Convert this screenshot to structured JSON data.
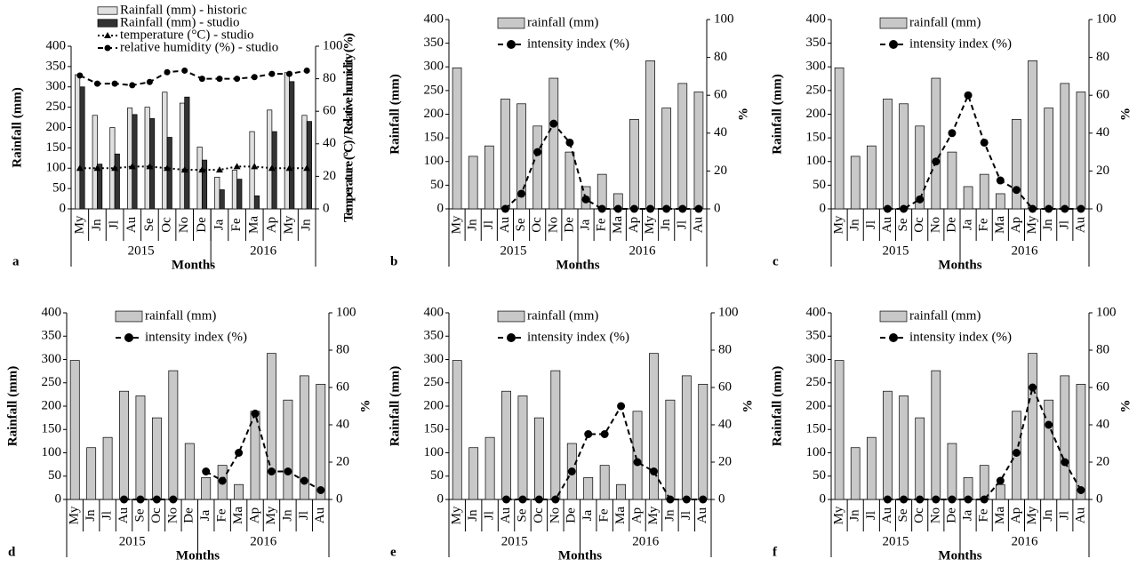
{
  "chart_data": [
    {
      "type": "bar_line",
      "panel_label": "a",
      "xlabel": "Months",
      "ylabel": "Rainfall (mm)",
      "y2label": "Temperature (°C) / Relative humidity (%)",
      "categories": [
        "My",
        "Jn",
        "Jl",
        "Au",
        "Se",
        "Oc",
        "No",
        "De",
        "Ja",
        "Fe",
        "Ma",
        "Ap",
        "My",
        "Jn"
      ],
      "groups": [
        {
          "name": "2015",
          "count": 8
        },
        {
          "name": "2016",
          "count": 6
        }
      ],
      "series": [
        {
          "name": "Rainfall (mm) - historic",
          "type": "bar",
          "color": "#e0e0e0",
          "values": [
            330,
            230,
            200,
            248,
            250,
            287,
            260,
            152,
            78,
            95,
            190,
            243,
            335,
            230
          ]
        },
        {
          "name": "Rainfall (mm) - studio",
          "type": "bar",
          "color": "#333333",
          "values": [
            300,
            110,
            135,
            232,
            222,
            176,
            275,
            120,
            47,
            73,
            32,
            190,
            313,
            215
          ]
        },
        {
          "name": "temperature (°C) - studio",
          "type": "line",
          "axis": "y2",
          "color": "#000000",
          "marker": "triangle",
          "line_style": "dotted",
          "values": [
            25,
            25,
            25,
            26,
            26,
            25,
            24,
            24,
            24,
            26,
            26,
            25,
            25,
            25
          ]
        },
        {
          "name": "relative humidity (%) - studio",
          "type": "line",
          "axis": "y2",
          "color": "#000000",
          "marker": "circle",
          "line_style": "dashed",
          "values": [
            82,
            77,
            77,
            76,
            78,
            84,
            85,
            80,
            80,
            80,
            81,
            83,
            83,
            85
          ]
        }
      ],
      "ylim": [
        0,
        400
      ],
      "yticks": [
        0,
        50,
        100,
        150,
        200,
        250,
        300,
        350,
        400
      ],
      "y2lim": [
        0,
        100
      ],
      "y2ticks": [
        0,
        20,
        40,
        60,
        80,
        100
      ],
      "legend": "top-left"
    },
    {
      "type": "bar_line",
      "panel_label": "b",
      "xlabel": "Months",
      "ylabel": "Rainfall (mm)",
      "y2label": "%",
      "categories": [
        "My",
        "Jn",
        "Jl",
        "Au",
        "Se",
        "Oc",
        "No",
        "De",
        "Ja",
        "Fe",
        "Ma",
        "Ap",
        "My",
        "Jn",
        "Jl",
        "Au"
      ],
      "groups": [
        {
          "name": "2015",
          "count": 8
        },
        {
          "name": "2016",
          "count": 8
        }
      ],
      "series": [
        {
          "name": "rainfall (mm)",
          "type": "bar",
          "color": "#c8c8c8",
          "values": [
            298,
            111,
            133,
            232,
            222,
            175,
            276,
            120,
            47,
            73,
            32,
            189,
            313,
            213,
            265,
            247
          ]
        },
        {
          "name": "intensity index (%)",
          "type": "line",
          "axis": "y2",
          "color": "#000000",
          "marker": "circle",
          "line_style": "dashed",
          "values": [
            null,
            null,
            null,
            0,
            8,
            30,
            45,
            35,
            5,
            0,
            0,
            0,
            0,
            0,
            0,
            0
          ]
        }
      ],
      "ylim": [
        0,
        400
      ],
      "yticks": [
        0,
        50,
        100,
        150,
        200,
        250,
        300,
        350,
        400
      ],
      "y2lim": [
        0,
        100
      ],
      "y2ticks": [
        0,
        20,
        40,
        60,
        80,
        100
      ],
      "legend": "top"
    },
    {
      "type": "bar_line",
      "panel_label": "c",
      "xlabel": "Months",
      "ylabel": "Rainfall (mm)",
      "y2label": "%",
      "categories": [
        "My",
        "Jn",
        "Jl",
        "Au",
        "Se",
        "Oc",
        "No",
        "De",
        "Ja",
        "Fe",
        "Ma",
        "Ap",
        "My",
        "Jn",
        "Jl",
        "Au"
      ],
      "groups": [
        {
          "name": "2015",
          "count": 8
        },
        {
          "name": "2016",
          "count": 8
        }
      ],
      "series": [
        {
          "name": "rainfall (mm)",
          "type": "bar",
          "color": "#c8c8c8",
          "values": [
            298,
            111,
            133,
            232,
            222,
            175,
            276,
            120,
            47,
            73,
            32,
            189,
            313,
            213,
            265,
            247
          ]
        },
        {
          "name": "intensity index (%)",
          "type": "line",
          "axis": "y2",
          "color": "#000000",
          "marker": "circle",
          "line_style": "dashed",
          "values": [
            null,
            null,
            null,
            0,
            0,
            5,
            25,
            40,
            60,
            35,
            15,
            10,
            0,
            0,
            0,
            0
          ]
        }
      ],
      "ylim": [
        0,
        400
      ],
      "yticks": [
        0,
        50,
        100,
        150,
        200,
        250,
        300,
        350,
        400
      ],
      "y2lim": [
        0,
        100
      ],
      "y2ticks": [
        0,
        20,
        40,
        60,
        80,
        100
      ],
      "legend": "top"
    },
    {
      "type": "bar_line",
      "panel_label": "d",
      "xlabel": "Months",
      "ylabel": "Rainfall (mm)",
      "y2label": "%",
      "categories": [
        "My",
        "Jn",
        "Jl",
        "Au",
        "Se",
        "Oc",
        "No",
        "De",
        "Ja",
        "Fe",
        "Ma",
        "Ap",
        "My",
        "Jn",
        "Jl",
        "Au"
      ],
      "groups": [
        {
          "name": "2015",
          "count": 8
        },
        {
          "name": "2016",
          "count": 8
        }
      ],
      "series": [
        {
          "name": "rainfall (mm)",
          "type": "bar",
          "color": "#c8c8c8",
          "values": [
            298,
            111,
            133,
            232,
            222,
            175,
            276,
            120,
            47,
            73,
            32,
            189,
            313,
            213,
            265,
            247
          ]
        },
        {
          "name": "intensity index (%)",
          "type": "line",
          "axis": "y2",
          "color": "#000000",
          "marker": "circle",
          "line_style": "dashed",
          "values": [
            null,
            null,
            null,
            0,
            0,
            0,
            0,
            null,
            15,
            10,
            25,
            46,
            15,
            15,
            10,
            5
          ]
        }
      ],
      "ylim": [
        0,
        400
      ],
      "yticks": [
        0,
        50,
        100,
        150,
        200,
        250,
        300,
        350,
        400
      ],
      "y2lim": [
        0,
        100
      ],
      "y2ticks": [
        0,
        20,
        40,
        60,
        80,
        100
      ],
      "legend": "top"
    },
    {
      "type": "bar_line",
      "panel_label": "e",
      "xlabel": "Months",
      "ylabel": "Rainfall (mm)",
      "y2label": "%",
      "categories": [
        "My",
        "Jn",
        "Jl",
        "Au",
        "Se",
        "Oc",
        "No",
        "De",
        "Ja",
        "Fe",
        "Ma",
        "Ap",
        "My",
        "Jn",
        "Jl",
        "Au"
      ],
      "groups": [
        {
          "name": "2015",
          "count": 8
        },
        {
          "name": "2016",
          "count": 8
        }
      ],
      "series": [
        {
          "name": "rainfall (mm)",
          "type": "bar",
          "color": "#c8c8c8",
          "values": [
            298,
            111,
            133,
            232,
            222,
            175,
            276,
            120,
            47,
            73,
            32,
            189,
            313,
            213,
            265,
            247
          ]
        },
        {
          "name": "intensity index (%)",
          "type": "line",
          "axis": "y2",
          "color": "#000000",
          "marker": "circle",
          "line_style": "dashed",
          "values": [
            null,
            null,
            null,
            0,
            0,
            0,
            0,
            15,
            35,
            35,
            50,
            20,
            15,
            0,
            0,
            0
          ]
        }
      ],
      "ylim": [
        0,
        400
      ],
      "yticks": [
        0,
        50,
        100,
        150,
        200,
        250,
        300,
        350,
        400
      ],
      "y2lim": [
        0,
        100
      ],
      "y2ticks": [
        0,
        20,
        40,
        60,
        80,
        100
      ],
      "legend": "top"
    },
    {
      "type": "bar_line",
      "panel_label": "f",
      "xlabel": "Months",
      "ylabel": "Rainfall (mm)",
      "y2label": "%",
      "categories": [
        "My",
        "Jn",
        "Jl",
        "Au",
        "Se",
        "Oc",
        "No",
        "De",
        "Ja",
        "Fe",
        "Ma",
        "Ap",
        "My",
        "Jn",
        "Jl",
        "Au"
      ],
      "groups": [
        {
          "name": "2015",
          "count": 8
        },
        {
          "name": "2016",
          "count": 8
        }
      ],
      "series": [
        {
          "name": "rainfall (mm)",
          "type": "bar",
          "color": "#c8c8c8",
          "values": [
            298,
            111,
            133,
            232,
            222,
            175,
            276,
            120,
            47,
            73,
            32,
            189,
            313,
            213,
            265,
            247
          ]
        },
        {
          "name": "intensity index (%)",
          "type": "line",
          "axis": "y2",
          "color": "#000000",
          "marker": "circle",
          "line_style": "dashed",
          "values": [
            null,
            null,
            null,
            0,
            0,
            0,
            0,
            0,
            0,
            0,
            10,
            25,
            60,
            40,
            20,
            5
          ]
        }
      ],
      "ylim": [
        0,
        400
      ],
      "yticks": [
        0,
        50,
        100,
        150,
        200,
        250,
        300,
        350,
        400
      ],
      "y2lim": [
        0,
        100
      ],
      "y2ticks": [
        0,
        20,
        40,
        60,
        80,
        100
      ],
      "legend": "top"
    }
  ]
}
